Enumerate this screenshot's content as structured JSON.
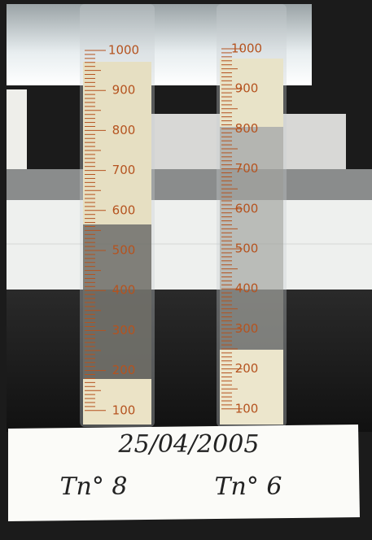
{
  "cylinders": [
    {
      "scale": [
        "1000",
        "900",
        "800",
        "700",
        "600",
        "500",
        "400",
        "300",
        "200",
        "100"
      ]
    },
    {
      "scale": [
        "1000",
        "900",
        "800",
        "700",
        "600",
        "500",
        "400",
        "300",
        "200",
        "100"
      ]
    }
  ],
  "card": {
    "date": "25/04/2005",
    "labels": [
      "Tn° 8",
      "Tn° 6"
    ]
  }
}
